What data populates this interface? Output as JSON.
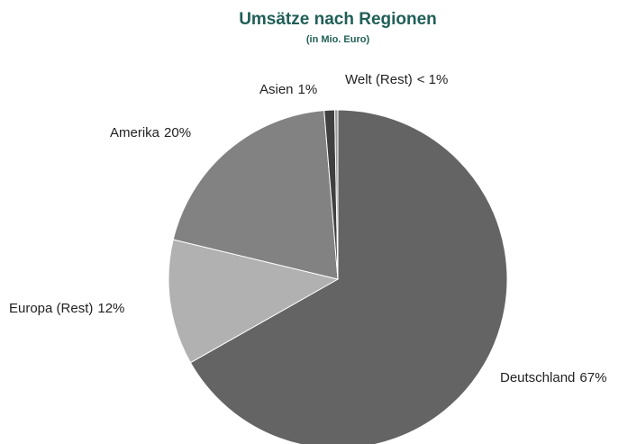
{
  "chart_data": {
    "type": "pie",
    "title": "Umsätze nach Regionen",
    "subtitle": "(in Mio. Euro)",
    "categories": [
      "Deutschland",
      "Europa (Rest)",
      "Amerika",
      "Asien",
      "Welt (Rest)"
    ],
    "values": [
      67,
      12,
      20,
      1,
      0.3
    ],
    "value_labels": [
      "67%",
      "12%",
      "20%",
      "1%",
      "< 1%"
    ],
    "colors": [
      "#646464",
      "#b1b1b1",
      "#828282",
      "#404040",
      "#9a9a9a"
    ]
  }
}
